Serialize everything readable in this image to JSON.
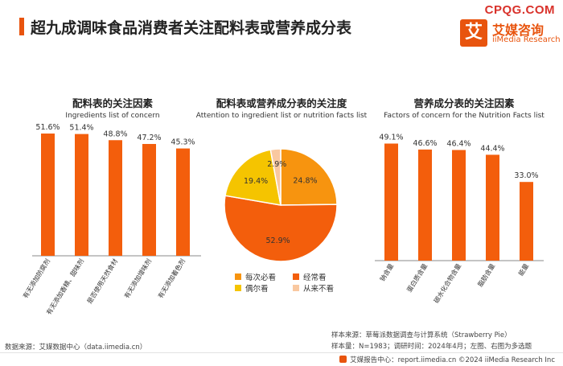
{
  "page": {
    "title": "超九成调味食品消费者关注配料表或营养成分表",
    "site_url": "CPQG.COM"
  },
  "logo": {
    "mark": "艾",
    "cn": "艾媒咨询",
    "en": "iiMedia Research"
  },
  "colors": {
    "accent": "#e8540e",
    "bar": "#f35e0c",
    "pie_always": "#f7940f",
    "pie_often": "#f35e0c",
    "pie_sometimes": "#f5c400",
    "pie_never": "#f9c8a0"
  },
  "chart_data": [
    {
      "type": "bar",
      "title": "配料表的关注因素",
      "subtitle": "Ingredients list of concern",
      "categories": [
        "有无添加防腐剂",
        "有无添加香精、甜味剂",
        "是否使用天然食材",
        "有无添加增味剂",
        "有无添加着色剂"
      ],
      "values": [
        51.6,
        51.4,
        48.8,
        47.2,
        45.3
      ],
      "value_labels": [
        "51.6%",
        "51.4%",
        "48.8%",
        "47.2%",
        "45.3%"
      ],
      "ylim": [
        0,
        55
      ]
    },
    {
      "type": "pie",
      "title": "配料表或营养成分表的关注度",
      "subtitle": "Attention to ingredient list or nutrition facts list",
      "slices": [
        {
          "label": "每次必看",
          "value": 24.8,
          "value_label": "24.8%",
          "color": "#f7940f"
        },
        {
          "label": "经常看",
          "value": 52.9,
          "value_label": "52.9%",
          "color": "#f35e0c"
        },
        {
          "label": "偶尔看",
          "value": 19.4,
          "value_label": "19.4%",
          "color": "#f5c400"
        },
        {
          "label": "从来不看",
          "value": 2.9,
          "value_label": "2.9%",
          "color": "#f9c8a0"
        }
      ],
      "legend_position": "bottom"
    },
    {
      "type": "bar",
      "title": "营养成分表的关注因素",
      "subtitle": "Factors of concern for the Nutrition Facts list",
      "categories": [
        "钠含量",
        "蛋白质含量",
        "碳水化合物含量",
        "脂肪含量",
        "能量"
      ],
      "values": [
        49.1,
        46.6,
        46.4,
        44.4,
        33.0
      ],
      "value_labels": [
        "49.1%",
        "46.6%",
        "46.4%",
        "44.4%",
        "33.0%"
      ],
      "ylim": [
        0,
        55
      ]
    }
  ],
  "footer": {
    "data_source": "数据来源：艾媒数据中心（data.iimedia.cn）",
    "sample_source": "样本来源：草莓派数据调查与计算系统（Strawberry Pie）",
    "sample_info": "样本量：N=1983；调研时间：2024年4月；左图、右图为多选题",
    "report_center": "艾媒报告中心：report.iimedia.cn    ©2024  iiMedia Research Inc"
  }
}
